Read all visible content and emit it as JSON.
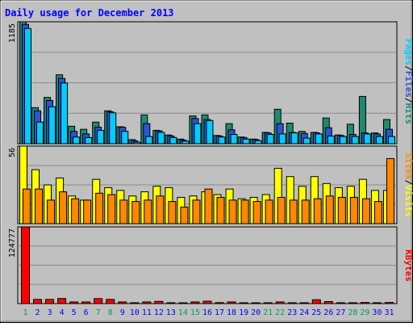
{
  "chart_data": {
    "type": "bar",
    "title": "Daily usage for December 2013",
    "categories": [
      "1",
      "2",
      "3",
      "4",
      "5",
      "6",
      "7",
      "8",
      "9",
      "10",
      "11",
      "12",
      "13",
      "14",
      "15",
      "16",
      "17",
      "18",
      "19",
      "20",
      "21",
      "22",
      "23",
      "24",
      "25",
      "26",
      "27",
      "28",
      "29",
      "30",
      "31"
    ],
    "weekend_days": [
      "1",
      "7",
      "8",
      "14",
      "15",
      "21",
      "22",
      "28",
      "29"
    ],
    "panels": [
      {
        "id": "hits",
        "ymax": 1185,
        "ymax_label": "1185",
        "legend": [
          "Pages",
          "/",
          "Files",
          "/",
          "Hits"
        ],
        "series": [
          {
            "name": "Hits",
            "color": "#1f8a70",
            "values": [
              1185,
              350,
              450,
              670,
              170,
              140,
              210,
              320,
              165,
              40,
              280,
              130,
              85,
              45,
              270,
              280,
              80,
              195,
              65,
              45,
              110,
              335,
              200,
              120,
              110,
              250,
              85,
              190,
              460,
              105,
              235
            ]
          },
          {
            "name": "Files",
            "color": "#2a55d4",
            "values": [
              1160,
              320,
              420,
              635,
              120,
              95,
              160,
              310,
              160,
              28,
              195,
              125,
              75,
              35,
              245,
              235,
              75,
              135,
              60,
              40,
              105,
              195,
              110,
              100,
              105,
              155,
              80,
              90,
              105,
              95,
              140
            ]
          },
          {
            "name": "Pages",
            "color": "#00ccff",
            "values": [
              1120,
              210,
              360,
              590,
              65,
              60,
              130,
              300,
              120,
              15,
              70,
              110,
              60,
              25,
              195,
              225,
              65,
              90,
              45,
              30,
              90,
              95,
              105,
              55,
              95,
              75,
              70,
              70,
              95,
              70,
              70
            ]
          }
        ]
      },
      {
        "id": "visits",
        "ymax": 56,
        "ymax_label": "56",
        "legend": [
          "Sites",
          "/",
          "Visits"
        ],
        "series": [
          {
            "name": "Visits",
            "color": "#ffff00",
            "values": [
              56,
              39,
              28,
              33,
              20,
              17,
              32,
              26,
              24,
              20,
              23,
              27,
              26,
              19,
              20,
              23,
              21,
              25,
              18,
              19,
              21,
              40,
              34,
              27,
              34,
              29,
              26,
              27,
              32,
              24,
              24
            ]
          },
          {
            "name": "Sites",
            "color": "#ff8800",
            "values": [
              25,
              25,
              17,
              23,
              18,
              17,
              22,
              21,
              17,
              16,
              17,
              20,
              16,
              12,
              17,
              25,
              19,
              17,
              17,
              16,
              17,
              19,
              17,
              17,
              18,
              20,
              19,
              19,
              18,
              16,
              47
            ]
          }
        ]
      },
      {
        "id": "kbytes",
        "ymax": 124777,
        "ymax_label": "124777",
        "legend": [
          "KBytes"
        ],
        "series": [
          {
            "name": "KBytes",
            "color": "#ff0000",
            "values": [
              124777,
              6800,
              6800,
              8300,
              2700,
              2700,
              8100,
              6800,
              2700,
              1400,
              2700,
              3600,
              1400,
              900,
              2700,
              3900,
              1600,
              2700,
              900,
              900,
              1400,
              2700,
              1400,
              1400,
              6300,
              3300,
              1400,
              1400,
              1800,
              1400,
              1800
            ]
          }
        ]
      }
    ]
  },
  "colors": {
    "background": "#c0c0c0",
    "plot_bg": "#c0c0c0",
    "title": "#0000ff",
    "grid": "#8a8a8a",
    "bar_border": "#000000",
    "weekday_label": "#0000ff",
    "weekend_label": "#00a060",
    "hits": "#1f8a70",
    "files": "#2a55d4",
    "pages": "#00ccff",
    "visits": "#ffff00",
    "sites": "#ff8800",
    "kbytes": "#ff0000"
  }
}
